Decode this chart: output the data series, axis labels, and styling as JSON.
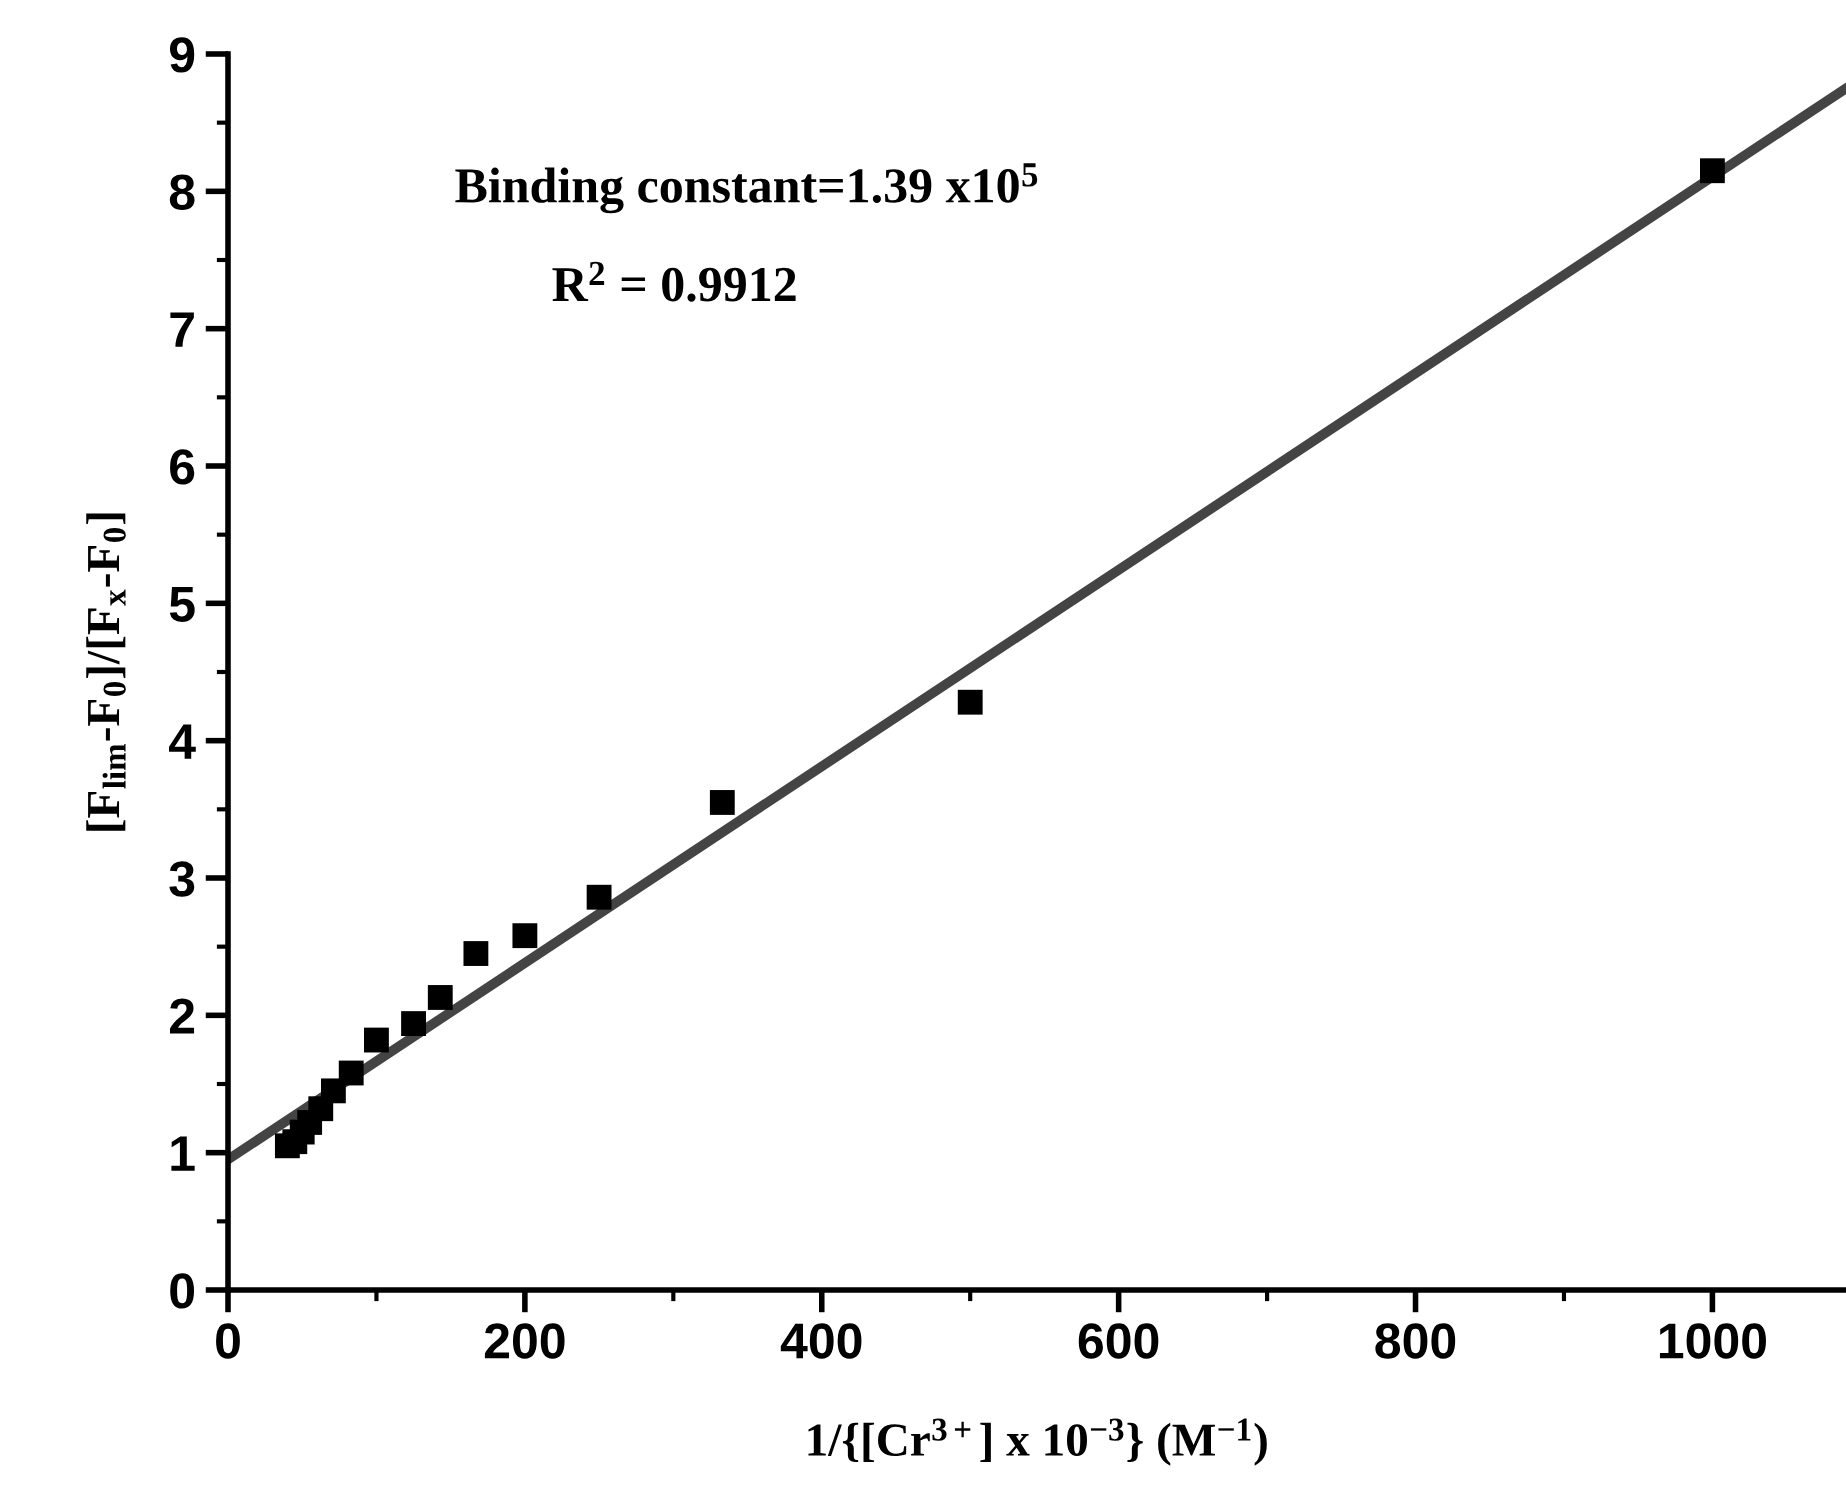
{
  "chart_data": {
    "type": "scatter",
    "xlabel": "1/{[Cr$^{3+}$] x 10$^{−3}$} (M$^{−1}$)",
    "ylabel": "[F$_{lim}$-F$_{0}$]/[F$_{x}$-F$_{0}$]",
    "annotations": [
      "Binding constant=1.39 x10$^{5}$",
      "R$^{2}$ = 0.9912"
    ],
    "series": [
      {
        "color": "#000000",
        "marker": "square",
        "x": [
          40,
          45,
          50,
          55,
          62.5,
          71,
          83,
          100,
          125,
          143,
          167,
          200,
          250,
          333,
          500,
          1000
        ],
        "values": [
          1.05,
          1.08,
          1.15,
          1.22,
          1.32,
          1.45,
          1.58,
          1.82,
          1.94,
          2.13,
          2.45,
          2.58,
          2.86,
          3.55,
          4.28,
          8.15
        ]
      },
      {
        "type": "line",
        "color": "#444444",
        "line_style": "solid",
        "x": [
          0,
          1090
        ],
        "values": [
          0.95,
          8.75
        ]
      }
    ],
    "xlim": [
      0,
      1090
    ],
    "ylim": [
      0,
      9
    ],
    "xticks": [
      0,
      {
        "value": 100,
        "label": null
      },
      200,
      {
        "value": 300,
        "label": null
      },
      400,
      {
        "value": 500,
        "label": null
      },
      600,
      {
        "value": 700,
        "label": null
      },
      800,
      {
        "value": 900,
        "label": null
      },
      1000
    ],
    "yticks": [
      0,
      {
        "value": 0.5,
        "label": null
      },
      1,
      {
        "value": 1.5,
        "label": null
      },
      2,
      {
        "value": 2.5,
        "label": null
      },
      3,
      {
        "value": 3.5,
        "label": null
      },
      4,
      {
        "value": 4.5,
        "label": null
      },
      5,
      {
        "value": 5.5,
        "label": null
      },
      6,
      {
        "value": 6.5,
        "label": null
      },
      7,
      {
        "value": 7.5,
        "label": null
      },
      8,
      {
        "value": 8.5,
        "label": null
      },
      9
    ],
    "grid": false,
    "legend": false
  }
}
